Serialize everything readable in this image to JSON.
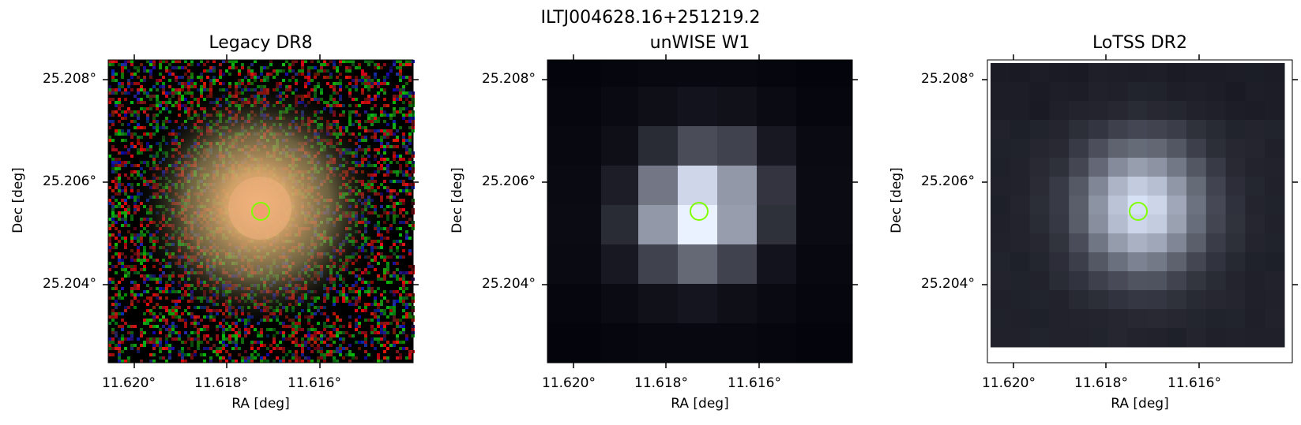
{
  "suptitle": "ILTJ004628.16+251219.2",
  "panels": [
    {
      "title": "Legacy DR8",
      "xlabel": "RA [deg]",
      "ylabel": "Dec [deg]"
    },
    {
      "title": "unWISE W1",
      "xlabel": "RA [deg]",
      "ylabel": "Dec [deg]"
    },
    {
      "title": "LoTSS DR2",
      "xlabel": "RA [deg]",
      "ylabel": "Dec [deg]"
    }
  ],
  "xticks": [
    "11.620°",
    "11.618°",
    "11.616°"
  ],
  "yticks": [
    "25.208°",
    "25.206°",
    "25.204°"
  ],
  "colors": {
    "marker": "#7fff00",
    "source": "#f0a070"
  }
}
